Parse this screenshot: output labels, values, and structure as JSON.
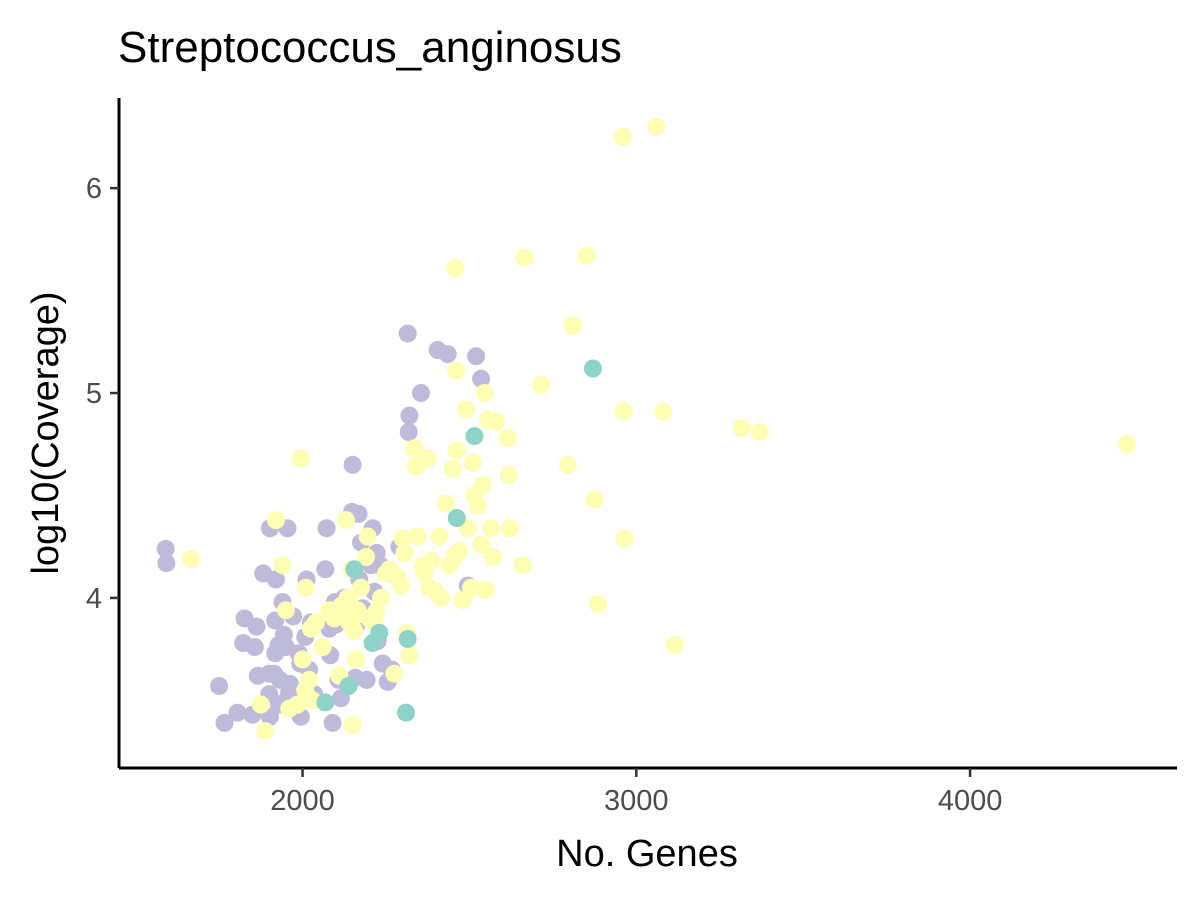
{
  "chart_data": {
    "type": "scatter",
    "title": "Streptococcus_anginosus",
    "xlabel": "No. Genes",
    "ylabel": "log10(Coverage)",
    "xlim": [
      1450,
      4620
    ],
    "ylim": [
      3.17,
      6.44
    ],
    "xticks": [
      2000,
      3000,
      4000
    ],
    "yticks": [
      4,
      5,
      6
    ],
    "grid": false,
    "legend": "none",
    "colors": {
      "purple": "#bebada",
      "yellow": "#ffffb3",
      "teal": "#8dd3c7"
    },
    "series": [
      {
        "color": "#bebada",
        "points": [
          [
            1590,
            4.24
          ],
          [
            1592,
            4.17
          ],
          [
            1750,
            3.57
          ],
          [
            1766,
            3.39
          ],
          [
            1805,
            3.44
          ],
          [
            1822,
            3.78
          ],
          [
            1826,
            3.9
          ],
          [
            1850,
            3.43
          ],
          [
            1857,
            3.76
          ],
          [
            1862,
            3.86
          ],
          [
            1866,
            3.62
          ],
          [
            1882,
            4.12
          ],
          [
            1900,
            3.63
          ],
          [
            1900,
            3.53
          ],
          [
            1902,
            3.42
          ],
          [
            1902,
            4.34
          ],
          [
            1915,
            3.63
          ],
          [
            1918,
            3.73
          ],
          [
            1918,
            3.89
          ],
          [
            1920,
            4.09
          ],
          [
            1928,
            3.77
          ],
          [
            1930,
            3.48
          ],
          [
            1932,
            3.6
          ],
          [
            1940,
            3.98
          ],
          [
            1944,
            3.82
          ],
          [
            1950,
            3.76
          ],
          [
            1955,
            4.34
          ],
          [
            1958,
            3.52
          ],
          [
            1960,
            3.54
          ],
          [
            1962,
            3.58
          ],
          [
            1965,
            3.46
          ],
          [
            1972,
            3.91
          ],
          [
            1988,
            3.73
          ],
          [
            1993,
            3.68
          ],
          [
            1995,
            3.42
          ],
          [
            2008,
            3.81
          ],
          [
            2012,
            4.09
          ],
          [
            2020,
            3.65
          ],
          [
            2025,
            3.88
          ],
          [
            2035,
            3.53
          ],
          [
            2068,
            4.14
          ],
          [
            2072,
            4.34
          ],
          [
            2080,
            3.85
          ],
          [
            2083,
            3.72
          ],
          [
            2090,
            3.39
          ],
          [
            2097,
            3.98
          ],
          [
            2100,
            3.87
          ],
          [
            2108,
            3.6
          ],
          [
            2115,
            3.51
          ],
          [
            2125,
            4.0
          ],
          [
            2135,
            3.98
          ],
          [
            2148,
            4.42
          ],
          [
            2150,
            4.65
          ],
          [
            2158,
            3.61
          ],
          [
            2162,
            3.87
          ],
          [
            2168,
            4.41
          ],
          [
            2170,
            4.09
          ],
          [
            2175,
            4.27
          ],
          [
            2180,
            3.95
          ],
          [
            2192,
            3.6
          ],
          [
            2205,
            4.16
          ],
          [
            2210,
            4.34
          ],
          [
            2215,
            4.03
          ],
          [
            2222,
            4.22
          ],
          [
            2225,
            3.79
          ],
          [
            2232,
            4.16
          ],
          [
            2240,
            3.68
          ],
          [
            2255,
            3.59
          ],
          [
            2268,
            3.65
          ],
          [
            2290,
            4.25
          ],
          [
            2315,
            5.29
          ],
          [
            2318,
            4.81
          ],
          [
            2320,
            4.89
          ],
          [
            2355,
            5.0
          ],
          [
            2405,
            5.21
          ],
          [
            2435,
            5.19
          ],
          [
            2495,
            4.06
          ],
          [
            2520,
            5.18
          ],
          [
            2535,
            5.07
          ]
        ]
      },
      {
        "color": "#ffffb3",
        "points": [
          [
            1665,
            4.19
          ],
          [
            1875,
            3.48
          ],
          [
            1888,
            3.35
          ],
          [
            1920,
            4.38
          ],
          [
            1940,
            4.16
          ],
          [
            1950,
            3.94
          ],
          [
            1960,
            3.46
          ],
          [
            1985,
            3.48
          ],
          [
            1995,
            4.68
          ],
          [
            2000,
            3.7
          ],
          [
            2008,
            3.55
          ],
          [
            2010,
            4.05
          ],
          [
            2015,
            3.52
          ],
          [
            2020,
            3.6
          ],
          [
            2025,
            3.85
          ],
          [
            2030,
            3.5
          ],
          [
            2040,
            3.88
          ],
          [
            2060,
            3.76
          ],
          [
            2080,
            3.94
          ],
          [
            2095,
            3.9
          ],
          [
            2110,
            3.62
          ],
          [
            2115,
            3.96
          ],
          [
            2130,
            4.38
          ],
          [
            2135,
            4.0
          ],
          [
            2140,
            3.88
          ],
          [
            2145,
            3.96
          ],
          [
            2148,
            4.14
          ],
          [
            2150,
            3.38
          ],
          [
            2155,
            3.84
          ],
          [
            2160,
            3.7
          ],
          [
            2165,
            3.94
          ],
          [
            2170,
            3.92
          ],
          [
            2175,
            4.05
          ],
          [
            2190,
            4.2
          ],
          [
            2195,
            4.3
          ],
          [
            2200,
            3.9
          ],
          [
            2215,
            3.88
          ],
          [
            2220,
            3.93
          ],
          [
            2235,
            4.0
          ],
          [
            2250,
            4.12
          ],
          [
            2260,
            4.14
          ],
          [
            2275,
            3.63
          ],
          [
            2285,
            4.1
          ],
          [
            2295,
            4.06
          ],
          [
            2300,
            4.29
          ],
          [
            2305,
            4.22
          ],
          [
            2312,
            3.83
          ],
          [
            2320,
            3.72
          ],
          [
            2335,
            4.73
          ],
          [
            2340,
            4.64
          ],
          [
            2345,
            4.3
          ],
          [
            2360,
            4.16
          ],
          [
            2365,
            4.12
          ],
          [
            2375,
            4.68
          ],
          [
            2380,
            4.05
          ],
          [
            2385,
            4.18
          ],
          [
            2400,
            4.03
          ],
          [
            2410,
            4.3
          ],
          [
            2415,
            4.0
          ],
          [
            2430,
            4.46
          ],
          [
            2440,
            4.16
          ],
          [
            2450,
            4.63
          ],
          [
            2455,
            4.2
          ],
          [
            2458,
            5.61
          ],
          [
            2460,
            5.11
          ],
          [
            2462,
            4.72
          ],
          [
            2470,
            4.23
          ],
          [
            2480,
            3.99
          ],
          [
            2490,
            4.92
          ],
          [
            2495,
            4.34
          ],
          [
            2505,
            4.05
          ],
          [
            2510,
            4.66
          ],
          [
            2515,
            4.5
          ],
          [
            2525,
            4.45
          ],
          [
            2535,
            4.26
          ],
          [
            2540,
            4.55
          ],
          [
            2545,
            5.0
          ],
          [
            2548,
            4.04
          ],
          [
            2555,
            4.87
          ],
          [
            2565,
            4.34
          ],
          [
            2570,
            4.2
          ],
          [
            2580,
            4.86
          ],
          [
            2615,
            4.78
          ],
          [
            2618,
            4.6
          ],
          [
            2622,
            4.34
          ],
          [
            2660,
            4.16
          ],
          [
            2665,
            5.66
          ],
          [
            2715,
            5.04
          ],
          [
            2795,
            4.65
          ],
          [
            2810,
            5.33
          ],
          [
            2850,
            5.67
          ],
          [
            2875,
            4.48
          ],
          [
            2885,
            3.97
          ],
          [
            2960,
            6.25
          ],
          [
            2962,
            4.91
          ],
          [
            2965,
            4.29
          ],
          [
            3060,
            6.3
          ],
          [
            3080,
            4.91
          ],
          [
            3115,
            3.77
          ],
          [
            3315,
            4.83
          ],
          [
            3370,
            4.81
          ],
          [
            4470,
            4.75
          ]
        ]
      },
      {
        "color": "#8dd3c7",
        "points": [
          [
            2068,
            3.49
          ],
          [
            2138,
            3.57
          ],
          [
            2155,
            4.14
          ],
          [
            2210,
            3.78
          ],
          [
            2230,
            3.83
          ],
          [
            2310,
            3.44
          ],
          [
            2315,
            3.8
          ],
          [
            2462,
            4.39
          ],
          [
            2515,
            4.79
          ],
          [
            2870,
            5.12
          ]
        ]
      }
    ]
  }
}
